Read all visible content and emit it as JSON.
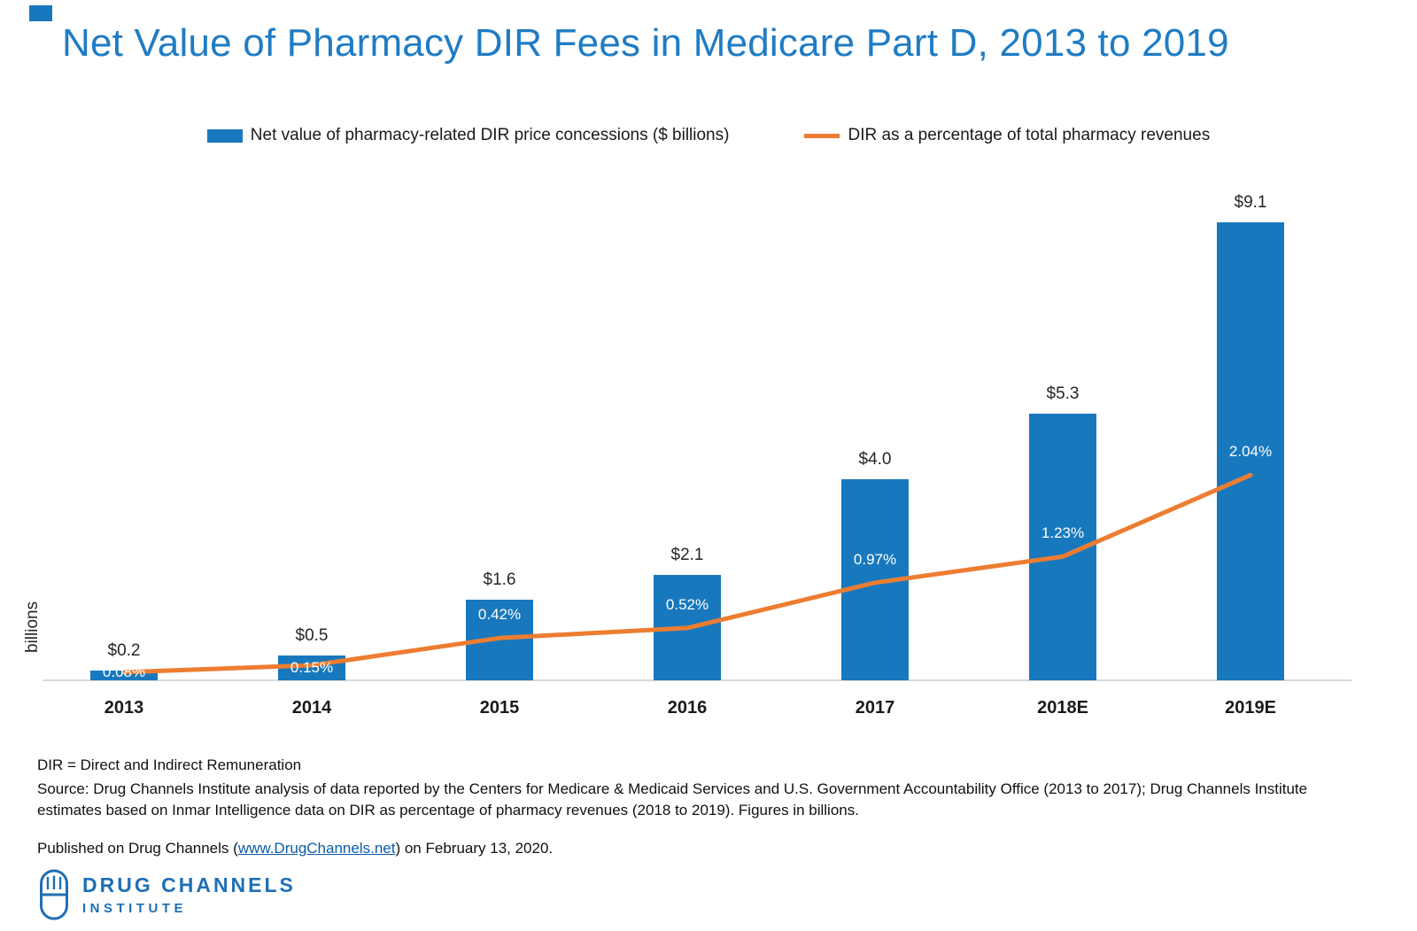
{
  "colors": {
    "title": "#1F7CC4",
    "bar": "#1878BE",
    "line": "#ED7D31",
    "logo": "#1E6FB5",
    "link": "#0B5CAB",
    "axis_line": "#D9D9D9"
  },
  "title": "Net Value of Pharmacy DIR Fees in Medicare Part D, 2013 to 2019",
  "legend": {
    "bar_label": "Net value of pharmacy-related DIR price concessions ($ billions)",
    "line_label": "DIR as a percentage of total pharmacy revenues"
  },
  "chart_data": {
    "type": "bar",
    "subtype": "bar-and-line combo, line on hidden secondary percentage axis",
    "title": "Net Value of Pharmacy DIR Fees in Medicare Part D, 2013 to 2019",
    "categories": [
      "2013",
      "2014",
      "2015",
      "2016",
      "2017",
      "2018E",
      "2019E"
    ],
    "series": [
      {
        "name": "Net value of pharmacy-related DIR price concessions ($ billions)",
        "type": "bar",
        "axis": "left",
        "values": [
          0.2,
          0.5,
          1.6,
          2.1,
          4.0,
          5.3,
          9.1
        ],
        "labels": [
          "$0.2",
          "$0.5",
          "$1.6",
          "$2.1",
          "$4.0",
          "$5.3",
          "$9.1"
        ],
        "color": "#1878BE"
      },
      {
        "name": "DIR as a percentage of total pharmacy revenues",
        "type": "line",
        "axis": "right",
        "values_pct": [
          0.08,
          0.15,
          0.42,
          0.52,
          0.97,
          1.23,
          2.04
        ],
        "labels": [
          "0.08%",
          "0.15%",
          "0.42%",
          "0.52%",
          "0.97%",
          "1.23%",
          "2.04%"
        ],
        "color": "#ED7D31"
      }
    ],
    "xlabel": "",
    "ylabel": "billions",
    "bar_axis_range": [
      0,
      10
    ],
    "line_axis_range_pct": [
      0,
      5
    ],
    "grid": false,
    "legend_position": "top"
  },
  "footnotes": {
    "dir_definition": "DIR = Direct and Indirect Remuneration",
    "source": "Source: Drug Channels Institute analysis of data reported by the Centers for Medicare & Medicaid Services and U.S. Government Accountability Office (2013 to 2017); Drug Channels Institute estimates based on Inmar Intelligence data on DIR as percentage of pharmacy revenues (2018 to 2019). Figures in billions.",
    "published": {
      "prefix": "Published on Drug Channels (",
      "link": "www.DrugChannels.net",
      "suffix": ") on February 13, 2020."
    }
  },
  "logo": {
    "name": "DRUG CHANNELS",
    "subtitle": "INSTITUTE"
  }
}
